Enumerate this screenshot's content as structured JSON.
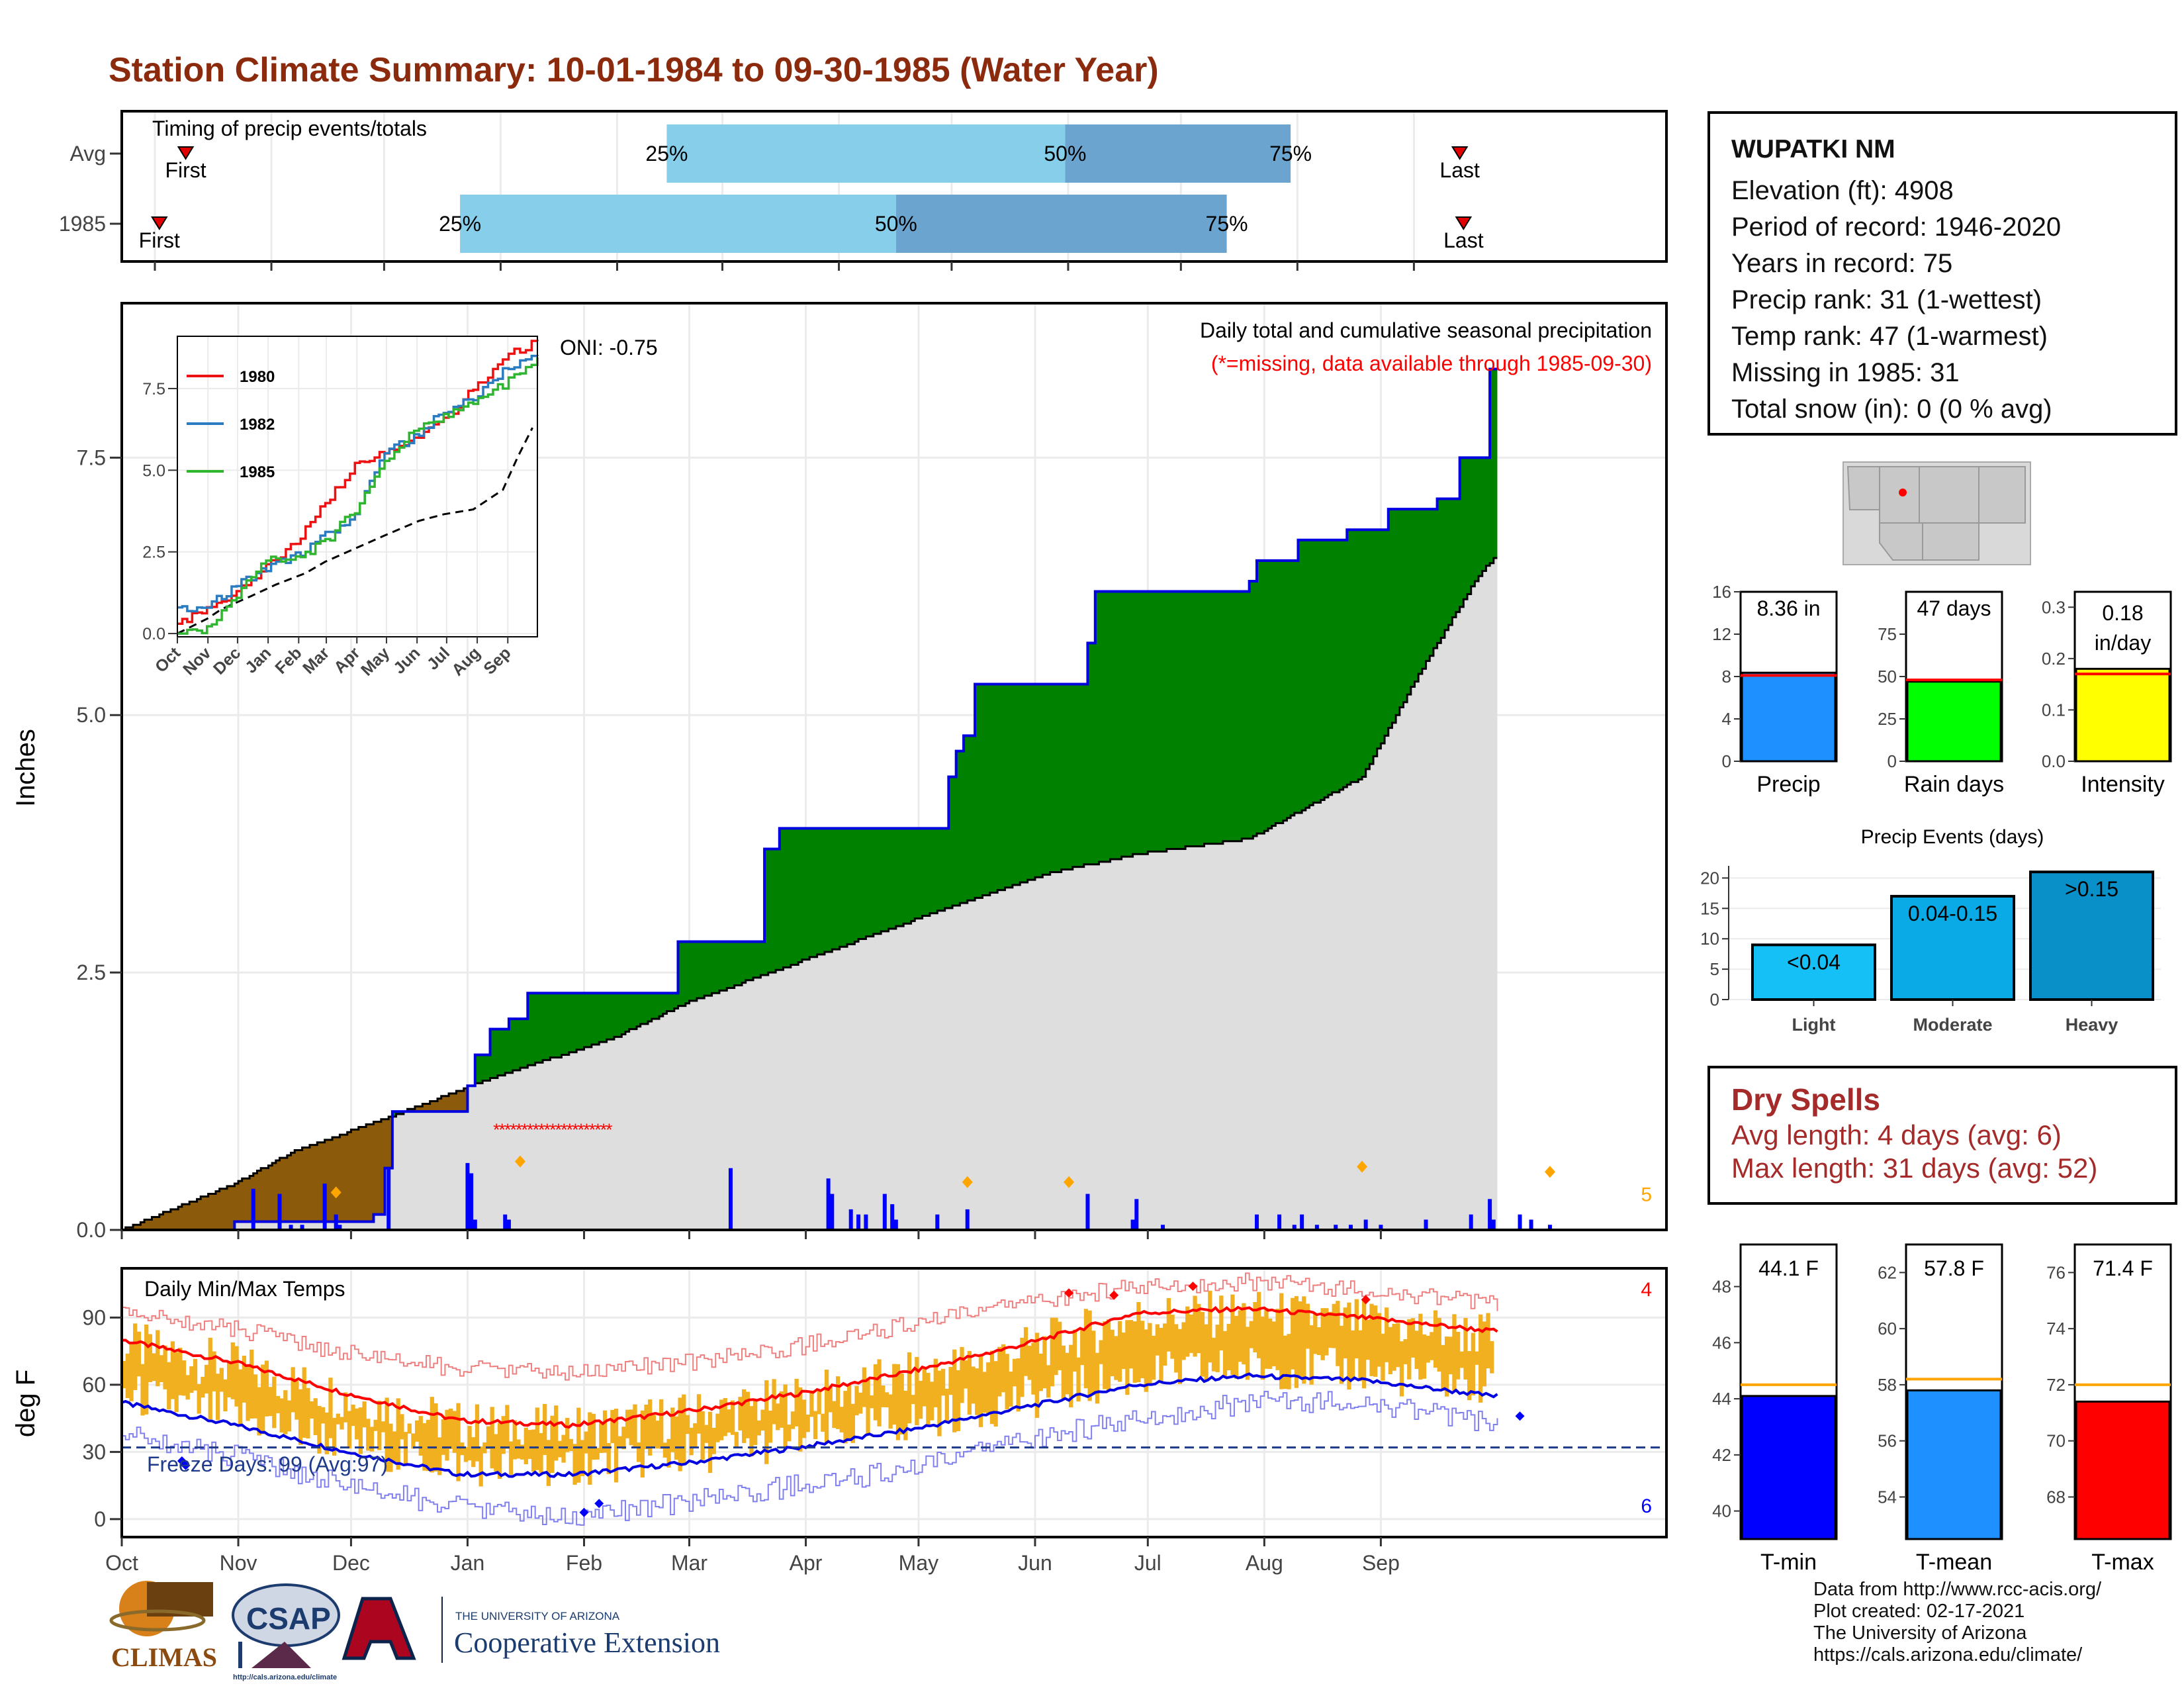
{
  "title": "Station Climate Summary: 10-01-1984 to 09-30-1985 (Water Year)",
  "timing": {
    "label": "Timing of precip events/totals",
    "rows": [
      {
        "name": "Avg",
        "first_label": "First",
        "last_label": "Last",
        "p25": "25%",
        "p50": "50%",
        "p75": "75%",
        "first_day": 17,
        "p25_day": 145,
        "p50_day": 251,
        "p75_day": 311,
        "last_day": 356
      },
      {
        "name": "1985",
        "first_label": "First",
        "last_label": "Last",
        "p25": "25%",
        "p50": "50%",
        "p75": "75%",
        "first_day": 10,
        "p25_day": 90,
        "p50_day": 206,
        "p75_day": 294,
        "last_day": 357
      }
    ]
  },
  "precip": {
    "header": "Daily total and cumulative seasonal precipitation",
    "subheader": "(*=missing, data available through 1985-09-30)",
    "oni": "ONI: -0.75",
    "ylabel": "Inches",
    "yticks": [
      "0.0",
      "2.5",
      "5.0",
      "7.5"
    ],
    "extreme_count": "5"
  },
  "inset": {
    "legend": [
      "1980",
      "1982",
      "1985"
    ],
    "yticks": [
      "0.0",
      "2.5",
      "5.0",
      "7.5"
    ],
    "months": [
      "Oct",
      "Nov",
      "Dec",
      "Jan",
      "Feb",
      "Mar",
      "Apr",
      "May",
      "Jun",
      "Jul",
      "Aug",
      "Sep"
    ]
  },
  "temp": {
    "header": "Daily Min/Max Temps",
    "ylabel": "deg F",
    "yticks": [
      "0",
      "30",
      "60",
      "90"
    ],
    "freeze": "Freeze Days: 99 (Avg:97)",
    "hot_count": "4",
    "cold_count": "6"
  },
  "months": [
    "Oct",
    "Nov",
    "Dec",
    "Jan",
    "Feb",
    "Mar",
    "Apr",
    "May",
    "Jun",
    "Jul",
    "Aug",
    "Sep"
  ],
  "station": {
    "name": "WUPATKI NM",
    "lines": [
      "Elevation (ft): 4908",
      "Period of record: 1946-2020",
      "Years in record: 75",
      "Precip rank: 31 (1-wettest)",
      "Temp rank: 47 (1-warmest)",
      "Missing in 1985: 31",
      "Total snow (in): 0 (0 % avg)"
    ]
  },
  "mini_bars": [
    {
      "label": "Precip",
      "value_text": "8.36 in",
      "value": 8.36,
      "avg": 8.1,
      "ymax": 16,
      "ticks": [
        "0",
        "4",
        "8",
        "12",
        "16"
      ],
      "color": "#1e90ff"
    },
    {
      "label": "Rain days",
      "value_text": "47 days",
      "value": 47,
      "avg": 48,
      "ymax": 100,
      "ticks": [
        "0",
        "25",
        "50",
        "75"
      ],
      "color": "#00ff00"
    },
    {
      "label": "Intensity",
      "value_text": "0.18 in/day",
      "value": 0.18,
      "avg": 0.17,
      "ymax": 0.33,
      "ticks": [
        "0.0",
        "0.1",
        "0.2",
        "0.3"
      ],
      "color": "#ffff00"
    }
  ],
  "events": {
    "title": "Precip Events (days)",
    "categories": [
      "Light",
      "Moderate",
      "Heavy"
    ],
    "values": [
      9,
      17,
      21
    ],
    "labels": [
      "<0.04",
      "0.04-0.15",
      ">0.15"
    ],
    "colors": [
      "#14c0f5",
      "#0aaae6",
      "#0a90c8"
    ],
    "ticks": [
      "0",
      "5",
      "10",
      "15",
      "20"
    ]
  },
  "dry_spells": {
    "title": "Dry Spells",
    "avg_line": "Avg length: 4 days (avg: 6)",
    "max_line": "Max length: 31 days (avg: 52)"
  },
  "temp_bars": [
    {
      "label": "T-min",
      "value_text": "44.1 F",
      "value": 44.1,
      "avg": 44.5,
      "ymin": 39,
      "ymax": 49.5,
      "ticks": [
        "40",
        "42",
        "44",
        "46",
        "48"
      ],
      "color": "#0000ff"
    },
    {
      "label": "T-mean",
      "value_text": "57.8 F",
      "value": 57.8,
      "avg": 58.2,
      "ymin": 52.5,
      "ymax": 63,
      "ticks": [
        "54",
        "56",
        "58",
        "60",
        "62"
      ],
      "color": "#1e90ff"
    },
    {
      "label": "T-max",
      "value_text": "71.4 F",
      "value": 71.4,
      "avg": 72,
      "ymin": 66.5,
      "ymax": 77,
      "ticks": [
        "68",
        "70",
        "72",
        "74",
        "76"
      ],
      "color": "#ff0000"
    }
  ],
  "footer": [
    "Data from http://www.rcc-acis.org/",
    "Plot created: 02-17-2021",
    "The University of Arizona",
    "https://cals.arizona.edu/climate/"
  ],
  "logos": {
    "climas": "CLIMAS",
    "csap": "CSAP",
    "csap_url": "http://cals.arizona.edu/climate",
    "ua_small": "THE UNIVERSITY OF ARIZONA",
    "ua_big": "Cooperative Extension"
  },
  "chart_data": {
    "type": "area",
    "x_unit": "day of water year (0 = Oct 1 1984)",
    "cumulative_1985": [
      [
        0,
        0
      ],
      [
        30,
        0.08
      ],
      [
        60,
        0.08
      ],
      [
        67,
        0.15
      ],
      [
        70,
        0.6
      ],
      [
        72,
        1.15
      ],
      [
        83,
        1.15
      ],
      [
        92,
        1.4
      ],
      [
        94,
        1.7
      ],
      [
        98,
        1.95
      ],
      [
        103,
        2.05
      ],
      [
        108,
        2.3
      ],
      [
        134,
        2.3
      ],
      [
        148,
        2.8
      ],
      [
        165,
        2.8
      ],
      [
        171,
        3.7
      ],
      [
        175,
        3.9
      ],
      [
        188,
        3.9
      ],
      [
        200,
        3.9
      ],
      [
        220,
        4.4
      ],
      [
        222,
        4.65
      ],
      [
        224,
        4.8
      ],
      [
        227,
        5.3
      ],
      [
        240,
        5.3
      ],
      [
        257,
        5.7
      ],
      [
        259,
        6.2
      ],
      [
        285,
        6.2
      ],
      [
        300,
        6.3
      ],
      [
        302,
        6.5
      ],
      [
        313,
        6.7
      ],
      [
        326,
        6.8
      ],
      [
        337,
        7.0
      ],
      [
        350,
        7.1
      ],
      [
        356,
        7.5
      ],
      [
        364,
        8.36
      ]
    ],
    "cumulative_avg": [
      [
        0,
        0
      ],
      [
        30,
        0.45
      ],
      [
        45,
        0.75
      ],
      [
        60,
        0.95
      ],
      [
        75,
        1.15
      ],
      [
        100,
        1.5
      ],
      [
        130,
        1.85
      ],
      [
        150,
        2.2
      ],
      [
        180,
        2.6
      ],
      [
        210,
        3.0
      ],
      [
        245,
        3.45
      ],
      [
        270,
        3.65
      ],
      [
        300,
        3.8
      ],
      [
        330,
        4.4
      ],
      [
        345,
        5.4
      ],
      [
        360,
        6.3
      ],
      [
        375,
        7.0
      ],
      [
        395,
        7.6
      ],
      [
        410,
        7.8
      ]
    ],
    "daily_precip": [
      [
        35,
        0.4
      ],
      [
        42,
        0.35
      ],
      [
        45,
        0.05
      ],
      [
        48,
        0.05
      ],
      [
        54,
        0.45
      ],
      [
        57,
        0.15
      ],
      [
        58,
        0.05
      ],
      [
        71,
        0.6
      ],
      [
        92,
        0.65
      ],
      [
        93,
        0.55
      ],
      [
        94,
        0.1
      ],
      [
        102,
        0.15
      ],
      [
        103,
        0.1
      ],
      [
        162,
        0.6
      ],
      [
        188,
        0.5
      ],
      [
        189,
        0.35
      ],
      [
        194,
        0.2
      ],
      [
        196,
        0.15
      ],
      [
        198,
        0.15
      ],
      [
        203,
        0.35
      ],
      [
        205,
        0.25
      ],
      [
        206,
        0.1
      ],
      [
        217,
        0.15
      ],
      [
        225,
        0.2
      ],
      [
        257,
        0.35
      ],
      [
        269,
        0.1
      ],
      [
        270,
        0.3
      ],
      [
        277,
        0.05
      ],
      [
        302,
        0.15
      ],
      [
        308,
        0.15
      ],
      [
        312,
        0.05
      ],
      [
        314,
        0.15
      ],
      [
        318,
        0.05
      ],
      [
        323,
        0.05
      ],
      [
        327,
        0.05
      ],
      [
        331,
        0.1
      ],
      [
        335,
        0.05
      ],
      [
        347,
        0.1
      ],
      [
        359,
        0.15
      ],
      [
        364,
        0.3
      ],
      [
        365,
        0.1
      ],
      [
        372,
        0.15
      ],
      [
        375,
        0.1
      ],
      [
        380,
        0.05
      ]
    ],
    "missing_days": [
      93,
      123
    ],
    "inset_series": [
      {
        "name": "1980",
        "values": [
          [
            0,
            0.3
          ],
          [
            30,
            0.7
          ],
          [
            60,
            1.3
          ],
          [
            90,
            2.0
          ],
          [
            120,
            2.8
          ],
          [
            150,
            4.0
          ],
          [
            180,
            5.2
          ],
          [
            210,
            5.6
          ],
          [
            240,
            6.0
          ],
          [
            270,
            6.5
          ],
          [
            300,
            7.5
          ],
          [
            330,
            8.4
          ],
          [
            365,
            9.0
          ]
        ]
      },
      {
        "name": "1982",
        "values": [
          [
            0,
            0.8
          ],
          [
            30,
            0.8
          ],
          [
            60,
            1.5
          ],
          [
            90,
            2.0
          ],
          [
            120,
            2.4
          ],
          [
            150,
            3.0
          ],
          [
            180,
            3.6
          ],
          [
            210,
            5.6
          ],
          [
            240,
            6.0
          ],
          [
            270,
            6.8
          ],
          [
            300,
            7.2
          ],
          [
            330,
            8.0
          ],
          [
            365,
            8.6
          ]
        ]
      },
      {
        "name": "1985",
        "values": [
          [
            0,
            0.0
          ],
          [
            30,
            0.1
          ],
          [
            60,
            1.2
          ],
          [
            90,
            2.3
          ],
          [
            120,
            2.3
          ],
          [
            150,
            2.8
          ],
          [
            180,
            3.8
          ],
          [
            210,
            5.3
          ],
          [
            240,
            6.2
          ],
          [
            270,
            6.6
          ],
          [
            300,
            7.1
          ],
          [
            330,
            7.6
          ],
          [
            365,
            8.4
          ]
        ]
      }
    ],
    "temp_avg_max": [
      [
        0,
        80
      ],
      [
        30,
        70
      ],
      [
        60,
        56
      ],
      [
        90,
        44
      ],
      [
        120,
        42
      ],
      [
        150,
        48
      ],
      [
        180,
        56
      ],
      [
        210,
        66
      ],
      [
        240,
        78
      ],
      [
        270,
        92
      ],
      [
        300,
        94
      ],
      [
        330,
        90
      ],
      [
        365,
        84
      ]
    ],
    "temp_avg_min": [
      [
        0,
        52
      ],
      [
        30,
        42
      ],
      [
        60,
        30
      ],
      [
        90,
        20
      ],
      [
        120,
        20
      ],
      [
        150,
        25
      ],
      [
        180,
        32
      ],
      [
        210,
        40
      ],
      [
        240,
        50
      ],
      [
        270,
        60
      ],
      [
        300,
        64
      ],
      [
        330,
        62
      ],
      [
        365,
        55
      ]
    ],
    "temp_record_max": [
      [
        0,
        92
      ],
      [
        30,
        85
      ],
      [
        60,
        74
      ],
      [
        90,
        67
      ],
      [
        120,
        65
      ],
      [
        150,
        70
      ],
      [
        180,
        77
      ],
      [
        210,
        87
      ],
      [
        240,
        96
      ],
      [
        270,
        104
      ],
      [
        300,
        106
      ],
      [
        330,
        102
      ],
      [
        365,
        96
      ]
    ],
    "temp_record_min": [
      [
        0,
        38
      ],
      [
        30,
        28
      ],
      [
        60,
        15
      ],
      [
        90,
        5
      ],
      [
        120,
        0
      ],
      [
        150,
        8
      ],
      [
        180,
        15
      ],
      [
        210,
        22
      ],
      [
        240,
        35
      ],
      [
        270,
        45
      ],
      [
        300,
        52
      ],
      [
        330,
        52
      ],
      [
        365,
        42
      ]
    ],
    "temp_freeze_line": 32,
    "ylim_precip": [
      0,
      9
    ],
    "ylim_temp": [
      -8,
      112
    ]
  }
}
